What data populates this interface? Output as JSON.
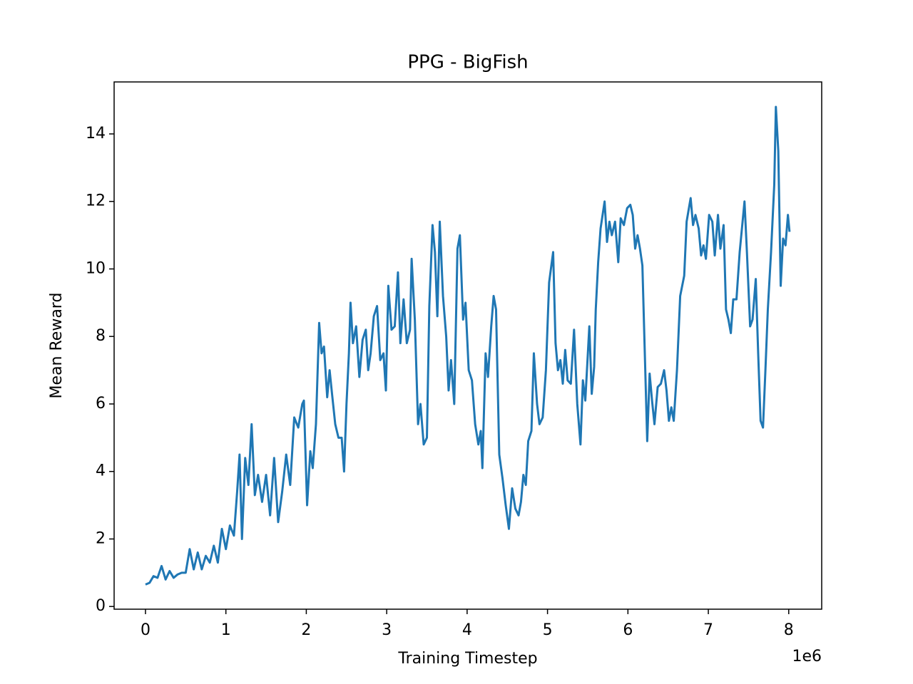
{
  "chart_data": {
    "type": "line",
    "title": "PPG - BigFish",
    "x_label": "Training Timestep",
    "y_label": "Mean Reward",
    "x_offset_label": "1e6",
    "xlim": [
      -0.39,
      8.41
    ],
    "ylim": [
      -0.08,
      15.54
    ],
    "xticks": [
      0,
      1,
      2,
      3,
      4,
      5,
      6,
      7,
      8
    ],
    "yticks": [
      0,
      2,
      4,
      6,
      8,
      10,
      12,
      14
    ],
    "grid": false,
    "series": [
      {
        "name": "PPG",
        "color": "#1f77b4",
        "x": [
          0,
          0.05,
          0.1,
          0.15,
          0.2,
          0.25,
          0.3,
          0.35,
          0.4,
          0.45,
          0.5,
          0.55,
          0.6,
          0.65,
          0.7,
          0.75,
          0.8,
          0.85,
          0.9,
          0.95,
          1.0,
          1.05,
          1.1,
          1.14,
          1.17,
          1.2,
          1.24,
          1.28,
          1.32,
          1.36,
          1.4,
          1.45,
          1.5,
          1.55,
          1.6,
          1.65,
          1.7,
          1.75,
          1.8,
          1.85,
          1.9,
          1.95,
          1.97,
          2.01,
          2.05,
          2.08,
          2.12,
          2.16,
          2.19,
          2.22,
          2.26,
          2.29,
          2.32,
          2.36,
          2.4,
          2.44,
          2.47,
          2.5,
          2.53,
          2.55,
          2.58,
          2.62,
          2.66,
          2.7,
          2.74,
          2.77,
          2.8,
          2.84,
          2.88,
          2.92,
          2.96,
          2.99,
          3.02,
          3.06,
          3.1,
          3.14,
          3.17,
          3.21,
          3.25,
          3.29,
          3.31,
          3.35,
          3.39,
          3.42,
          3.46,
          3.5,
          3.53,
          3.57,
          3.6,
          3.63,
          3.66,
          3.7,
          3.74,
          3.77,
          3.8,
          3.84,
          3.88,
          3.91,
          3.95,
          3.98,
          4.02,
          4.06,
          4.1,
          4.14,
          4.17,
          4.19,
          4.23,
          4.26,
          4.3,
          4.33,
          4.36,
          4.4,
          4.44,
          4.48,
          4.52,
          4.56,
          4.6,
          4.64,
          4.67,
          4.7,
          4.73,
          4.76,
          4.8,
          4.83,
          4.87,
          4.9,
          4.94,
          4.98,
          5.02,
          5.07,
          5.1,
          5.13,
          5.16,
          5.19,
          5.22,
          5.25,
          5.29,
          5.33,
          5.37,
          5.41,
          5.44,
          5.47,
          5.52,
          5.55,
          5.58,
          5.6,
          5.63,
          5.66,
          5.71,
          5.74,
          5.77,
          5.8,
          5.84,
          5.88,
          5.91,
          5.95,
          5.99,
          6.03,
          6.06,
          6.09,
          6.12,
          6.15,
          6.18,
          6.21,
          6.24,
          6.27,
          6.3,
          6.33,
          6.37,
          6.41,
          6.45,
          6.48,
          6.51,
          6.54,
          6.57,
          6.61,
          6.65,
          6.7,
          6.73,
          6.78,
          6.81,
          6.84,
          6.88,
          6.91,
          6.94,
          6.97,
          7.01,
          7.05,
          7.08,
          7.12,
          7.15,
          7.19,
          7.22,
          7.25,
          7.28,
          7.31,
          7.35,
          7.39,
          7.45,
          7.48,
          7.52,
          7.55,
          7.59,
          7.62,
          7.65,
          7.68,
          7.71,
          7.74,
          7.78,
          7.82,
          7.84,
          7.87,
          7.9,
          7.93,
          7.96,
          7.99,
          8.01
        ],
        "values": [
          0.65,
          0.7,
          0.9,
          0.85,
          1.2,
          0.8,
          1.05,
          0.85,
          0.95,
          1.0,
          1.0,
          1.7,
          1.1,
          1.6,
          1.1,
          1.5,
          1.3,
          1.8,
          1.3,
          2.3,
          1.7,
          2.4,
          2.1,
          3.4,
          4.5,
          2.0,
          4.4,
          3.6,
          5.4,
          3.3,
          3.9,
          3.1,
          3.9,
          2.7,
          4.4,
          2.5,
          3.4,
          4.5,
          3.6,
          5.6,
          5.3,
          6.0,
          6.1,
          3.0,
          4.6,
          4.1,
          5.4,
          8.4,
          7.5,
          7.7,
          6.2,
          7.0,
          6.3,
          5.4,
          5.0,
          5.0,
          4.0,
          6.0,
          7.5,
          9.0,
          7.8,
          8.3,
          6.8,
          7.9,
          8.2,
          7.0,
          7.5,
          8.6,
          8.9,
          7.3,
          7.5,
          6.4,
          9.5,
          8.2,
          8.3,
          9.9,
          7.8,
          9.1,
          7.8,
          8.2,
          10.3,
          8.5,
          5.4,
          6.0,
          4.8,
          5.0,
          8.9,
          11.3,
          10.5,
          8.6,
          11.4,
          9.2,
          8.0,
          6.4,
          7.3,
          6.0,
          10.6,
          11.0,
          8.5,
          9.0,
          7.0,
          6.7,
          5.4,
          4.8,
          5.2,
          4.1,
          7.5,
          6.8,
          8.3,
          9.2,
          8.8,
          4.5,
          3.8,
          3.0,
          2.3,
          3.5,
          2.9,
          2.7,
          3.1,
          3.9,
          3.6,
          4.9,
          5.2,
          7.5,
          6.0,
          5.4,
          5.6,
          7.0,
          9.6,
          10.5,
          7.8,
          7.0,
          7.3,
          6.6,
          7.6,
          6.7,
          6.6,
          8.2,
          6.0,
          4.8,
          6.7,
          6.1,
          8.3,
          6.3,
          7.1,
          8.8,
          10.2,
          11.2,
          12.0,
          10.8,
          11.4,
          11.0,
          11.4,
          10.2,
          11.5,
          11.3,
          11.8,
          11.9,
          11.6,
          10.6,
          11.0,
          10.6,
          10.1,
          7.5,
          4.9,
          6.9,
          6.1,
          5.4,
          6.5,
          6.6,
          7.0,
          6.4,
          5.5,
          5.9,
          5.5,
          7.0,
          9.2,
          9.8,
          11.4,
          12.1,
          11.3,
          11.6,
          11.2,
          10.4,
          10.7,
          10.3,
          11.6,
          11.4,
          10.4,
          11.6,
          10.6,
          11.3,
          8.8,
          8.5,
          8.1,
          9.1,
          9.1,
          10.5,
          12.0,
          10.5,
          8.3,
          8.5,
          9.7,
          7.5,
          5.5,
          5.3,
          7.0,
          8.8,
          10.5,
          12.5,
          14.8,
          13.5,
          9.5,
          10.9,
          10.7,
          11.6,
          11.1
        ]
      }
    ]
  }
}
